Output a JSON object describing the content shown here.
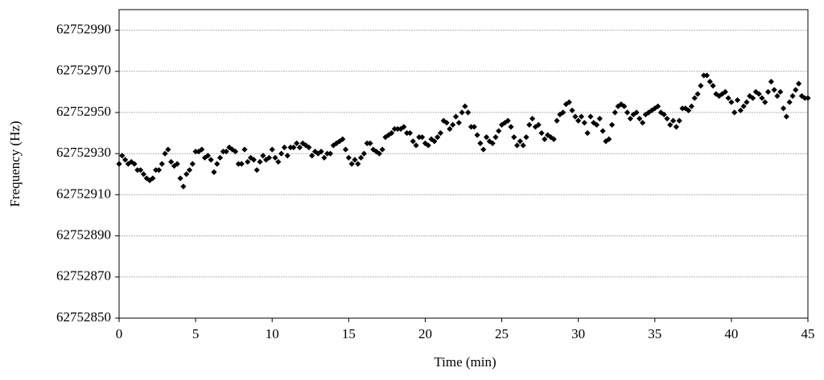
{
  "chart_data": {
    "type": "scatter",
    "x_label": "Time (min)",
    "y_label": "Frequency (Hz)",
    "xlim": [
      0,
      45
    ],
    "xticks": [
      0,
      5,
      10,
      15,
      20,
      25,
      30,
      35,
      40,
      45
    ],
    "ylim": [
      62752850,
      62753000
    ],
    "yticks": [
      62752850,
      62752870,
      62752890,
      62752910,
      62752930,
      62752950,
      62752970,
      62752990
    ],
    "grid": true,
    "color": "#000000",
    "x": [
      0,
      0.2,
      0.4,
      0.6,
      0.8,
      1,
      1.2,
      1.4,
      1.6,
      1.8,
      2,
      2.2,
      2.4,
      2.6,
      2.8,
      3,
      3.2,
      3.4,
      3.6,
      3.8,
      4,
      4.2,
      4.4,
      4.6,
      4.8,
      5,
      5.2,
      5.4,
      5.6,
      5.8,
      6,
      6.2,
      6.4,
      6.6,
      6.8,
      7,
      7.2,
      7.4,
      7.6,
      7.8,
      8,
      8.2,
      8.4,
      8.6,
      8.8,
      9,
      9.2,
      9.4,
      9.6,
      9.8,
      10,
      10.2,
      10.4,
      10.6,
      10.8,
      11,
      11.2,
      11.4,
      11.6,
      11.8,
      12,
      12.2,
      12.4,
      12.6,
      12.8,
      13,
      13.2,
      13.4,
      13.6,
      13.8,
      14,
      14.2,
      14.4,
      14.6,
      14.8,
      15,
      15.2,
      15.4,
      15.6,
      15.8,
      16,
      16.2,
      16.4,
      16.6,
      16.8,
      17,
      17.2,
      17.4,
      17.6,
      17.8,
      18,
      18.2,
      18.4,
      18.6,
      18.8,
      19,
      19.2,
      19.4,
      19.6,
      19.8,
      20,
      20.2,
      20.4,
      20.6,
      20.8,
      21,
      21.2,
      21.4,
      21.6,
      21.8,
      22,
      22.2,
      22.4,
      22.6,
      22.8,
      23,
      23.2,
      23.4,
      23.6,
      23.8,
      24,
      24.2,
      24.4,
      24.6,
      24.8,
      25,
      25.2,
      25.4,
      25.6,
      25.8,
      26,
      26.2,
      26.4,
      26.6,
      26.8,
      27,
      27.2,
      27.4,
      27.6,
      27.8,
      28,
      28.2,
      28.4,
      28.6,
      28.8,
      29,
      29.2,
      29.4,
      29.6,
      29.8,
      30,
      30.2,
      30.4,
      30.6,
      30.8,
      31,
      31.2,
      31.4,
      31.6,
      31.8,
      32,
      32.2,
      32.4,
      32.6,
      32.8,
      33,
      33.2,
      33.4,
      33.6,
      33.8,
      34,
      34.2,
      34.4,
      34.6,
      34.8,
      35,
      35.2,
      35.4,
      35.6,
      35.8,
      36,
      36.2,
      36.4,
      36.6,
      36.8,
      37,
      37.2,
      37.4,
      37.6,
      37.8,
      38,
      38.2,
      38.4,
      38.6,
      38.8,
      39,
      39.2,
      39.4,
      39.6,
      39.8,
      40,
      40.2,
      40.4,
      40.6,
      40.8,
      41,
      41.2,
      41.4,
      41.6,
      41.8,
      42,
      42.2,
      42.4,
      42.6,
      42.8,
      43,
      43.2,
      43.4,
      43.6,
      43.8,
      44,
      44.2,
      44.4,
      44.6,
      44.8,
      45
    ],
    "values": [
      62752925,
      62752929,
      62752927,
      62752925,
      62752926,
      62752925,
      62752922,
      62752922,
      62752920,
      62752918,
      62752917,
      62752918,
      62752922,
      62752922,
      62752925,
      62752930,
      62752932,
      62752926,
      62752924,
      62752925,
      62752918,
      62752914,
      62752920,
      62752922,
      62752925,
      62752931,
      62752931,
      62752932,
      62752928,
      62752929,
      62752927,
      62752921,
      62752925,
      62752928,
      62752931,
      62752931,
      62752933,
      62752932,
      62752931,
      62752925,
      62752925,
      62752932,
      62752926,
      62752928,
      62752927,
      62752922,
      62752926,
      62752929,
      62752927,
      62752928,
      62752932,
      62752928,
      62752926,
      62752930,
      62752933,
      62752929,
      62752933,
      62752933,
      62752935,
      62752933,
      62752935,
      62752934,
      62752933,
      62752929,
      62752931,
      62752930,
      62752931,
      62752928,
      62752930,
      62752930,
      62752934,
      62752935,
      62752936,
      62752937,
      62752932,
      62752928,
      62752925,
      62752927,
      62752925,
      62752928,
      62752930,
      62752935,
      62752935,
      62752932,
      62752931,
      62752930,
      62752932,
      62752938,
      62752939,
      62752940,
      62752942,
      62752942,
      62752942,
      62752943,
      62752940,
      62752940,
      62752936,
      62752934,
      62752938,
      62752938,
      62752935,
      62752934,
      62752937,
      62752936,
      62752938,
      62752940,
      62752946,
      62752945,
      62752942,
      62752944,
      62752948,
      62752945,
      62752950,
      62752953,
      62752950,
      62752943,
      62752943,
      62752939,
      62752935,
      62752932,
      62752938,
      62752936,
      62752935,
      62752938,
      62752941,
      62752944,
      62752945,
      62752946,
      62752943,
      62752938,
      62752934,
      62752936,
      62752934,
      62752938,
      62752944,
      62752947,
      62752943,
      62752944,
      62752940,
      62752937,
      62752939,
      62752938,
      62752937,
      62752946,
      62752949,
      62752950,
      62752954,
      62752955,
      62752951,
      62752948,
      62752946,
      62752948,
      62752945,
      62752940,
      62752948,
      62752945,
      62752944,
      62752947,
      62752941,
      62752936,
      62752937,
      62752944,
      62752950,
      62752953,
      62752954,
      62752953,
      62752950,
      62752947,
      62752949,
      62752950,
      62752947,
      62752945,
      62752949,
      62752950,
      62752951,
      62752952,
      62752953,
      62752950,
      62752949,
      62752947,
      62752944,
      62752946,
      62752943,
      62752946,
      62752952,
      62752952,
      62752951,
      62752953,
      62752957,
      62752959,
      62752963,
      62752968,
      62752968,
      62752965,
      62752963,
      62752959,
      62752958,
      62752959,
      62752960,
      62752957,
      62752955,
      62752950,
      62752956,
      62752951,
      62752953,
      62752955,
      62752958,
      62752957,
      62752960,
      62752959,
      62752957,
      62752955,
      62752960,
      62752965,
      62752961,
      62752958,
      62752960,
      62752952,
      62752948,
      62752955,
      62752958,
      62752961,
      62752964,
      62752958,
      62752957,
      62752957
    ]
  }
}
